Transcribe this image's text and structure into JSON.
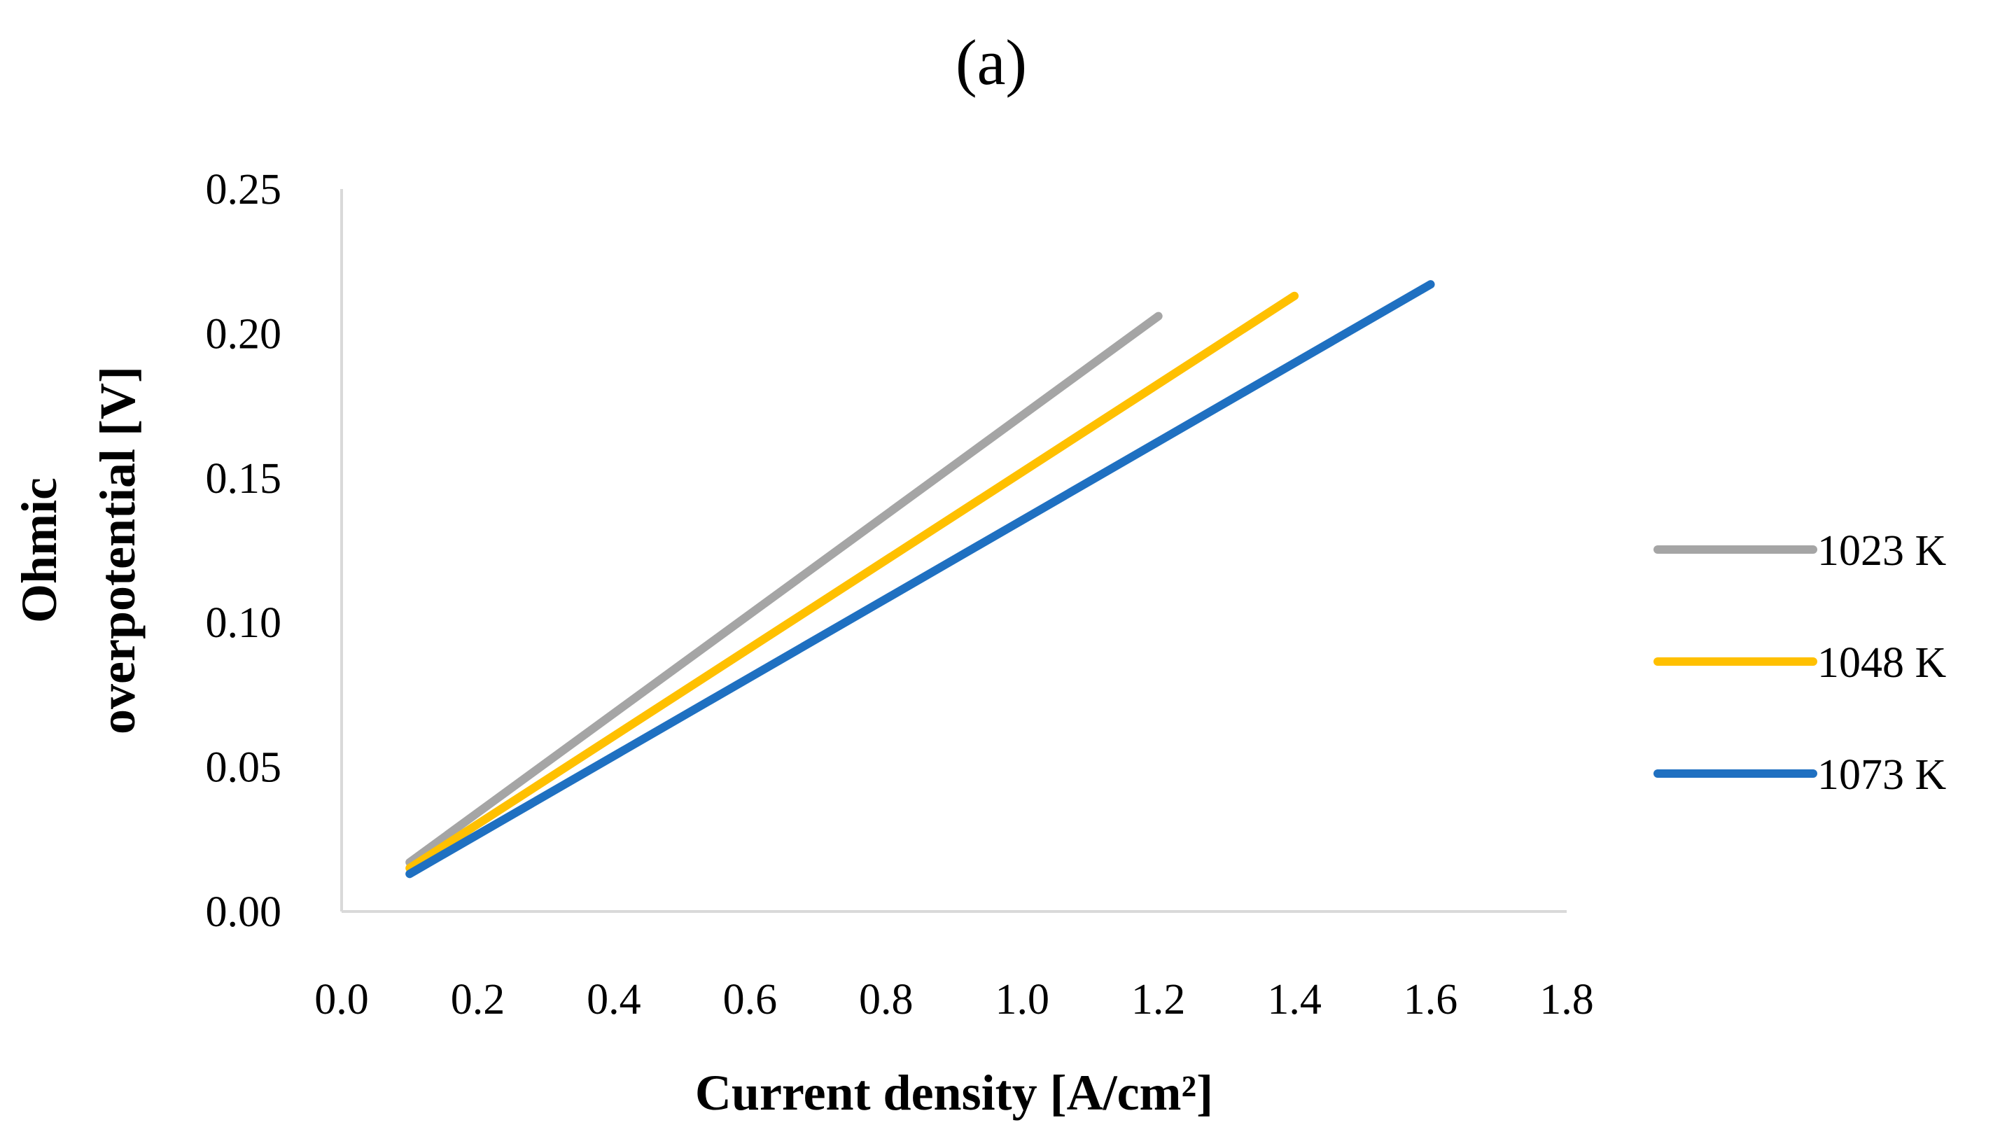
{
  "chart_data": {
    "type": "line",
    "title": "(a)",
    "xlabel": "Current density [A/cm²]",
    "ylabel_lines": [
      "Ohmic",
      "overpotential [V]"
    ],
    "xlim": [
      0.0,
      1.8
    ],
    "ylim": [
      0.0,
      0.25
    ],
    "x_ticks": [
      "0.0",
      "0.2",
      "0.4",
      "0.6",
      "0.8",
      "1.0",
      "1.2",
      "1.4",
      "1.6",
      "1.8"
    ],
    "y_ticks": [
      "0.00",
      "0.05",
      "0.10",
      "0.15",
      "0.20",
      "0.25"
    ],
    "grid": false,
    "legend_position": "right",
    "series": [
      {
        "name": "1023 K",
        "color": "#a5a5a5",
        "x": [
          0.1,
          1.2
        ],
        "y": [
          0.017,
          0.206
        ]
      },
      {
        "name": "1048 K",
        "color": "#ffc000",
        "x": [
          0.1,
          1.4
        ],
        "y": [
          0.015,
          0.213
        ]
      },
      {
        "name": "1073 K",
        "color": "#1f70c1",
        "x": [
          0.1,
          1.6
        ],
        "y": [
          0.013,
          0.217
        ]
      }
    ]
  }
}
